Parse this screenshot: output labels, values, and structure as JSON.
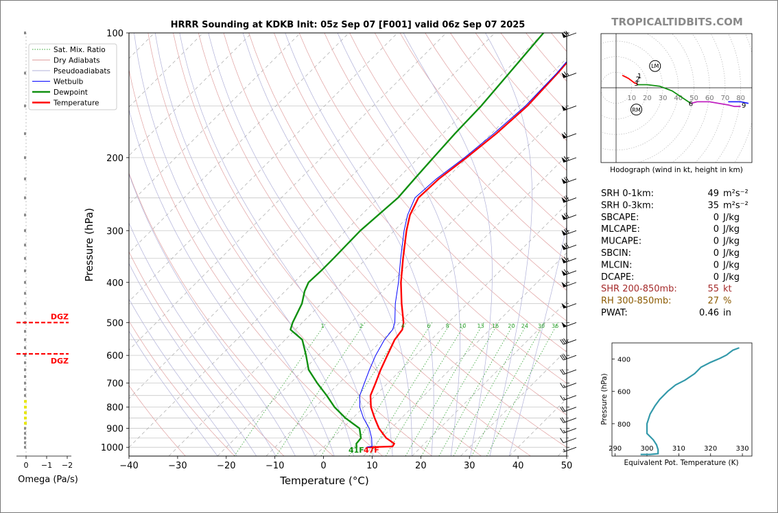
{
  "title": "HRRR Sounding at KDKB Init: 05z Sep 07 [F001] valid 06z Sep 07 2025",
  "brand": "TROPICALTIDBITS.COM",
  "skewt": {
    "xlabel": "Temperature (°C)",
    "ylabel": "Pressure (hPa)",
    "x_ticks": [
      -40,
      -30,
      -20,
      -10,
      0,
      10,
      20,
      30,
      40,
      50
    ],
    "x_tick_labels": [
      "−40",
      "−30",
      "−20",
      "−10",
      "0",
      "10",
      "20",
      "30",
      "40",
      "50"
    ],
    "xlim": [
      -40,
      50
    ],
    "p_ticks": [
      100,
      200,
      300,
      400,
      500,
      600,
      700,
      800,
      900,
      1000
    ],
    "plim": [
      100,
      1050
    ],
    "mixing_ratio_labels": [
      "1",
      "2",
      "4",
      "6",
      "8",
      "10",
      "13",
      "16",
      "20",
      "24",
      "30",
      "36"
    ],
    "legend": [
      {
        "name": "Sat. Mix. Ratio",
        "color": "#2ca02c",
        "style": "dotted"
      },
      {
        "name": "Dry Adiabats",
        "color": "#e0a0a0",
        "style": "solid"
      },
      {
        "name": "Pseudoadiabats",
        "color": "#b0b0d8",
        "style": "solid"
      },
      {
        "name": "Wetbulb",
        "color": "#0000ff",
        "style": "solid"
      },
      {
        "name": "Dewpoint",
        "color": "#109010",
        "style": "solid"
      },
      {
        "name": "Temperature",
        "color": "#ff0000",
        "style": "solid"
      }
    ],
    "surface_dewpoint_label": "41F",
    "surface_temp_label": "47F"
  },
  "chart_data": [
    {
      "type": "line",
      "title": "HRRR Sounding at KDKB Init: 05z Sep 07 [F001] valid 06z Sep 07 2025",
      "xlabel": "Temperature (°C)",
      "ylabel": "Pressure (hPa)",
      "y_scale": "log",
      "series": [
        {
          "name": "Temperature",
          "color": "#ff0000",
          "points": [
            [
              1000,
              9.0
            ],
            [
              995,
              14.0
            ],
            [
              980,
              13.8
            ],
            [
              950,
              11.0
            ],
            [
              900,
              7.5
            ],
            [
              850,
              4.5
            ],
            [
              800,
              1.5
            ],
            [
              750,
              -1.0
            ],
            [
              700,
              -2.5
            ],
            [
              650,
              -4.2
            ],
            [
              600,
              -5.8
            ],
            [
              550,
              -7.5
            ],
            [
              520,
              -8.0
            ],
            [
              500,
              -9.2
            ],
            [
              450,
              -13.5
            ],
            [
              400,
              -18.0
            ],
            [
              350,
              -22.5
            ],
            [
              300,
              -27.5
            ],
            [
              275,
              -30.0
            ],
            [
              250,
              -31.8
            ],
            [
              225,
              -31.5
            ],
            [
              200,
              -30.2
            ],
            [
              175,
              -29.0
            ],
            [
              150,
              -28.3
            ],
            [
              125,
              -28.8
            ],
            [
              100,
              -30.0
            ]
          ]
        },
        {
          "name": "Dewpoint",
          "color": "#109010",
          "points": [
            [
              1000,
              6.8
            ],
            [
              980,
              6.0
            ],
            [
              950,
              5.8
            ],
            [
              900,
              3.5
            ],
            [
              850,
              -1.5
            ],
            [
              800,
              -6.0
            ],
            [
              750,
              -10.0
            ],
            [
              700,
              -14.5
            ],
            [
              650,
              -19.0
            ],
            [
              600,
              -22.5
            ],
            [
              550,
              -26.5
            ],
            [
              520,
              -31.0
            ],
            [
              500,
              -32.0
            ],
            [
              450,
              -34.0
            ],
            [
              420,
              -36.0
            ],
            [
              400,
              -37.0
            ],
            [
              375,
              -36.8
            ],
            [
              350,
              -36.8
            ],
            [
              300,
              -37.0
            ],
            [
              250,
              -36.0
            ],
            [
              225,
              -36.5
            ],
            [
              200,
              -37.0
            ],
            [
              175,
              -37.5
            ],
            [
              150,
              -37.8
            ],
            [
              125,
              -38.8
            ],
            [
              100,
              -40.0
            ]
          ]
        },
        {
          "name": "Wetbulb",
          "color": "#0000ff",
          "points": [
            [
              1000,
              8.8
            ],
            [
              995,
              9.8
            ],
            [
              950,
              8.0
            ],
            [
              900,
              5.5
            ],
            [
              850,
              2.2
            ],
            [
              800,
              -0.8
            ],
            [
              750,
              -3.2
            ],
            [
              700,
              -4.8
            ],
            [
              650,
              -6.5
            ],
            [
              600,
              -8.2
            ],
            [
              550,
              -9.6
            ],
            [
              520,
              -10.0
            ],
            [
              500,
              -11.0
            ],
            [
              450,
              -14.8
            ],
            [
              400,
              -18.5
            ],
            [
              350,
              -23.0
            ],
            [
              300,
              -28.0
            ],
            [
              275,
              -30.5
            ],
            [
              250,
              -32.5
            ],
            [
              225,
              -32.0
            ],
            [
              200,
              -30.6
            ],
            [
              175,
              -29.5
            ],
            [
              150,
              -28.7
            ],
            [
              125,
              -29.0
            ],
            [
              100,
              -30.2
            ]
          ]
        }
      ]
    },
    {
      "type": "line",
      "title": "Hodograph (wind in kt, height in km)",
      "ring_labels": [
        "10",
        "20",
        "30",
        "40",
        "50",
        "60",
        "70",
        "80"
      ],
      "height_labels": [
        {
          "label": "1",
          "u": 15,
          "v": 8
        },
        {
          "label": "2",
          "u": 14,
          "v": 6
        },
        {
          "label": "3",
          "u": 13,
          "v": 3
        },
        {
          "label": "6",
          "u": 48,
          "v": -10
        },
        {
          "label": "9",
          "u": 82,
          "v": -11
        }
      ],
      "motion_markers": [
        {
          "label": "LM",
          "u": 25,
          "v": 14
        },
        {
          "label": "RM",
          "u": 13,
          "v": -14
        }
      ],
      "segments": [
        {
          "color": "#ff0000",
          "points": [
            [
              4,
              8
            ],
            [
              8,
              6
            ],
            [
              12,
              3
            ],
            [
              13,
              3
            ],
            [
              13.5,
              2
            ]
          ]
        },
        {
          "color": "#109010",
          "points": [
            [
              13.5,
              2
            ],
            [
              20,
              2
            ],
            [
              28,
              1
            ],
            [
              36,
              -2
            ],
            [
              42,
              -6
            ],
            [
              48,
              -10
            ]
          ]
        },
        {
          "color": "#c020c0",
          "points": [
            [
              48,
              -10
            ],
            [
              52,
              -9
            ],
            [
              60,
              -9
            ],
            [
              66,
              -10
            ],
            [
              72,
              -11
            ],
            [
              76,
              -12
            ],
            [
              80,
              -12
            ]
          ]
        },
        {
          "color": "#2020ff",
          "points": [
            [
              72,
              -9
            ],
            [
              76,
              -9
            ],
            [
              80,
              -9
            ],
            [
              85,
              -10
            ]
          ]
        }
      ]
    },
    {
      "type": "line",
      "xlabel": "Equivalent Pot. Temperature (K)",
      "ylabel": "Pressure (hPa)",
      "x_ticks": [
        "290",
        "300",
        "310",
        "320",
        "330"
      ],
      "y_ticks": [
        "400",
        "600",
        "800"
      ],
      "xlim": [
        289,
        333
      ],
      "ylim": [
        1000,
        300
      ],
      "series": [
        {
          "name": "",
          "color": "#3399aa",
          "points": [
            [
              298,
              990
            ],
            [
              301,
              990
            ],
            [
              303.5,
              985
            ],
            [
              303.5,
              960
            ],
            [
              303,
              930
            ],
            [
              302,
              900
            ],
            [
              300,
              860
            ],
            [
              300,
              800
            ],
            [
              301,
              740
            ],
            [
              302.5,
              690
            ],
            [
              304,
              650
            ],
            [
              306.5,
              600
            ],
            [
              309,
              560
            ],
            [
              312,
              530
            ],
            [
              315,
              490
            ],
            [
              317,
              450
            ],
            [
              320,
              420
            ],
            [
              323,
              395
            ],
            [
              325,
              375
            ],
            [
              326,
              360
            ],
            [
              327,
              345
            ],
            [
              329,
              330
            ]
          ]
        }
      ]
    },
    {
      "type": "line",
      "xlabel": "Omega (Pa/s)",
      "x_ticks": [
        "0",
        "−1",
        "−2"
      ]
    }
  ],
  "indices": [
    {
      "label": "SRH 0-1km:",
      "value": "49",
      "unit": "m²s⁻²",
      "color": "#000000"
    },
    {
      "label": "SRH 0-3km:",
      "value": "35",
      "unit": "m²s⁻²",
      "color": "#000000"
    },
    {
      "label": "SBCAPE:",
      "value": "0",
      "unit": "J/kg",
      "color": "#000000"
    },
    {
      "label": "MLCAPE:",
      "value": "0",
      "unit": "J/kg",
      "color": "#000000"
    },
    {
      "label": "MUCAPE:",
      "value": "0",
      "unit": "J/kg",
      "color": "#000000"
    },
    {
      "label": "SBCIN:",
      "value": "0",
      "unit": "J/kg",
      "color": "#000000"
    },
    {
      "label": "MLCIN:",
      "value": "0",
      "unit": "J/kg",
      "color": "#000000"
    },
    {
      "label": "DCAPE:",
      "value": "0",
      "unit": "J/kg",
      "color": "#000000"
    },
    {
      "label": "SHR 200-850mb:",
      "value": "55",
      "unit": "kt",
      "color": "#a52a2a"
    },
    {
      "label": "RH 300-850mb:",
      "value": "27",
      "unit": "%",
      "color": "#8b5a00"
    },
    {
      "label": "PWAT:",
      "value": "0.46",
      "unit": "in",
      "color": "#000000"
    }
  ],
  "omega": {
    "dgz_label": "DGZ",
    "dgz_levels_hpa": [
      500,
      595
    ]
  },
  "wind_barbs": [
    {
      "p": 100,
      "kt": 70
    },
    {
      "p": 125,
      "kt": 65
    },
    {
      "p": 150,
      "kt": 55
    },
    {
      "p": 175,
      "kt": 60
    },
    {
      "p": 200,
      "kt": 65
    },
    {
      "p": 225,
      "kt": 70
    },
    {
      "p": 250,
      "kt": 70
    },
    {
      "p": 275,
      "kt": 70
    },
    {
      "p": 300,
      "kt": 70
    },
    {
      "p": 325,
      "kt": 70
    },
    {
      "p": 350,
      "kt": 65
    },
    {
      "p": 375,
      "kt": 65
    },
    {
      "p": 400,
      "kt": 55
    },
    {
      "p": 450,
      "kt": 50
    },
    {
      "p": 500,
      "kt": 50
    },
    {
      "p": 550,
      "kt": 35
    },
    {
      "p": 600,
      "kt": 30
    },
    {
      "p": 650,
      "kt": 20
    },
    {
      "p": 700,
      "kt": 15
    },
    {
      "p": 750,
      "kt": 15
    },
    {
      "p": 800,
      "kt": 20
    },
    {
      "p": 850,
      "kt": 20
    },
    {
      "p": 900,
      "kt": 15
    },
    {
      "p": 950,
      "kt": 10
    },
    {
      "p": 1000,
      "kt": 5
    }
  ]
}
